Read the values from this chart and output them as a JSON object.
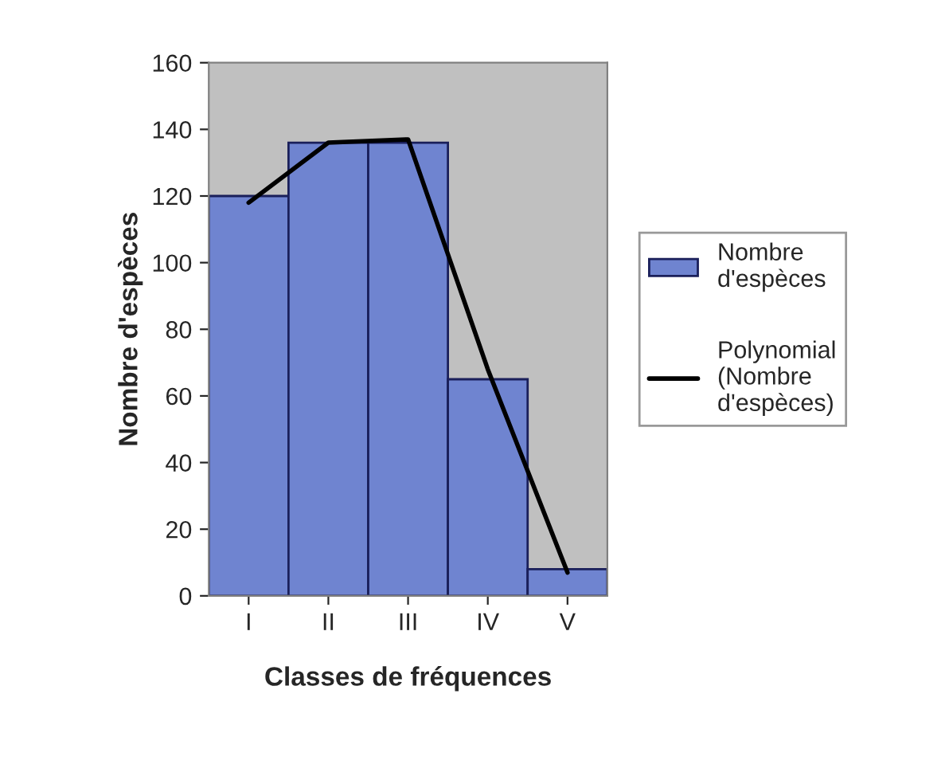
{
  "chart_data": {
    "type": "bar",
    "xlabel": "Classes de fréquences",
    "ylabel": "Nombre d'espèces",
    "categories": [
      "I",
      "II",
      "III",
      "IV",
      "V"
    ],
    "ylim": [
      0,
      160
    ],
    "yticks": [
      0,
      20,
      40,
      60,
      80,
      100,
      120,
      140,
      160
    ],
    "grid": false,
    "legend": "right",
    "series": [
      {
        "name": "Nombre d'espèces",
        "color": "#6f84d0",
        "values": [
          120,
          136,
          136,
          65,
          8
        ]
      },
      {
        "name": "Polynomial (Nombre d'espèces)",
        "type": "line",
        "color": "#000000",
        "values": [
          118,
          136,
          137,
          68,
          7
        ]
      }
    ]
  }
}
